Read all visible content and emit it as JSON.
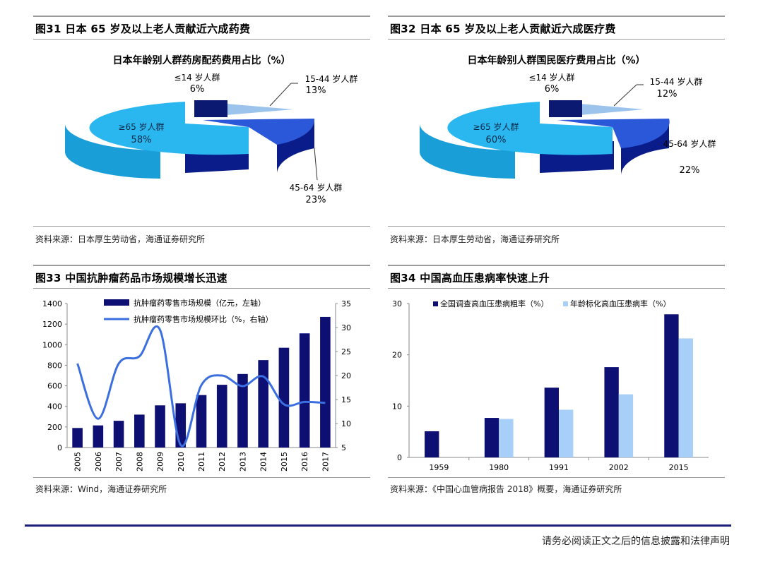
{
  "footer": {
    "disclaimer": "请务必阅读正文之后的信息披露和法律声明"
  },
  "panels": [
    {
      "figure_title": "图31 日本 65 岁及以上老人贡献近六成药费",
      "source": "资料来源：日本厚生劳动省，海通证券研究所"
    },
    {
      "figure_title": "图32 日本 65 岁及以上老人贡献近六成医疗费",
      "source": "资料来源：日本厚生劳动省，海通证券研究所"
    },
    {
      "figure_title": "图33 中国抗肿瘤药品市场规模增长迅速",
      "source": "资料来源：Wind，海通证券研究所"
    },
    {
      "figure_title": "图34 中国高血压患病率快速上升",
      "source": "资料来源：《中国心血管病报告 2018》概要，海通证券研究所"
    }
  ],
  "chart_data": [
    {
      "type": "pie",
      "title": "日本年龄别人群药房配药费用占比（%）",
      "slices": [
        {
          "label": "≤14 岁人群",
          "value": 6,
          "value_label": "6%",
          "color": "#0b1a70"
        },
        {
          "label": "15-44 岁人群",
          "value": 13,
          "value_label": "13%",
          "color": "#9cc3ec"
        },
        {
          "label": "45-64 岁人群",
          "value": 23,
          "value_label": "23%",
          "color": "#2a58d8"
        },
        {
          "label": "≥65 岁人群",
          "value": 58,
          "value_label": "58%",
          "color": "#2ab6ee"
        }
      ]
    },
    {
      "type": "pie",
      "title": "日本年龄别人群国民医疗费用占比（%）",
      "slices": [
        {
          "label": "≤14 岁人群",
          "value": 6,
          "value_label": "6%",
          "color": "#0b1a70"
        },
        {
          "label": "15-44 岁人群",
          "value": 12,
          "value_label": "12%",
          "color": "#9cc3ec"
        },
        {
          "label": "45-64 岁人群",
          "value": 22,
          "value_label": "22%",
          "color": "#2a58d8"
        },
        {
          "label": "≥65 岁人群",
          "value": 60,
          "value_label": "60%",
          "color": "#2ab6ee"
        }
      ]
    },
    {
      "type": "bar",
      "categories": [
        "2005",
        "2006",
        "2007",
        "2008",
        "2009",
        "2010",
        "2011",
        "2012",
        "2013",
        "2014",
        "2015",
        "2016",
        "2017"
      ],
      "series": [
        {
          "name": "抗肿瘤药零售市场规模（亿元，左轴）",
          "kind": "bar",
          "axis": "left",
          "color": "#0d0f73",
          "values": [
            190,
            215,
            260,
            320,
            410,
            430,
            510,
            610,
            715,
            850,
            970,
            1110,
            1270
          ]
        },
        {
          "name": "抗肿瘤药零售市场规模环比（%，右轴）",
          "kind": "line",
          "axis": "right",
          "color": "#3b6fe0",
          "values": [
            22.5,
            11.0,
            22.5,
            24.0,
            29.5,
            5.5,
            18.0,
            20.0,
            17.8,
            19.8,
            14.0,
            14.5,
            14.3
          ]
        }
      ],
      "ylim_left": [
        0,
        1400
      ],
      "yticks_left": [
        "0",
        "200",
        "400",
        "600",
        "800",
        "1000",
        "1200",
        "1400"
      ],
      "ylim_right": [
        5,
        35
      ],
      "yticks_right": [
        "5",
        "10",
        "15",
        "20",
        "25",
        "30",
        "35"
      ]
    },
    {
      "type": "bar",
      "categories": [
        "1959",
        "1980",
        "1991",
        "2002",
        "2015"
      ],
      "series": [
        {
          "name": "全国调查高血压患病粗率（%）",
          "color": "#0d0f73",
          "values": [
            5.1,
            7.7,
            13.6,
            17.6,
            27.9
          ]
        },
        {
          "name": "年龄标化高血压患病率（%）",
          "color": "#a8cff8",
          "values": [
            null,
            7.5,
            9.3,
            12.3,
            23.2
          ]
        }
      ],
      "ylim": [
        0,
        30
      ],
      "yticks": [
        "0",
        "10",
        "20",
        "30"
      ]
    }
  ]
}
